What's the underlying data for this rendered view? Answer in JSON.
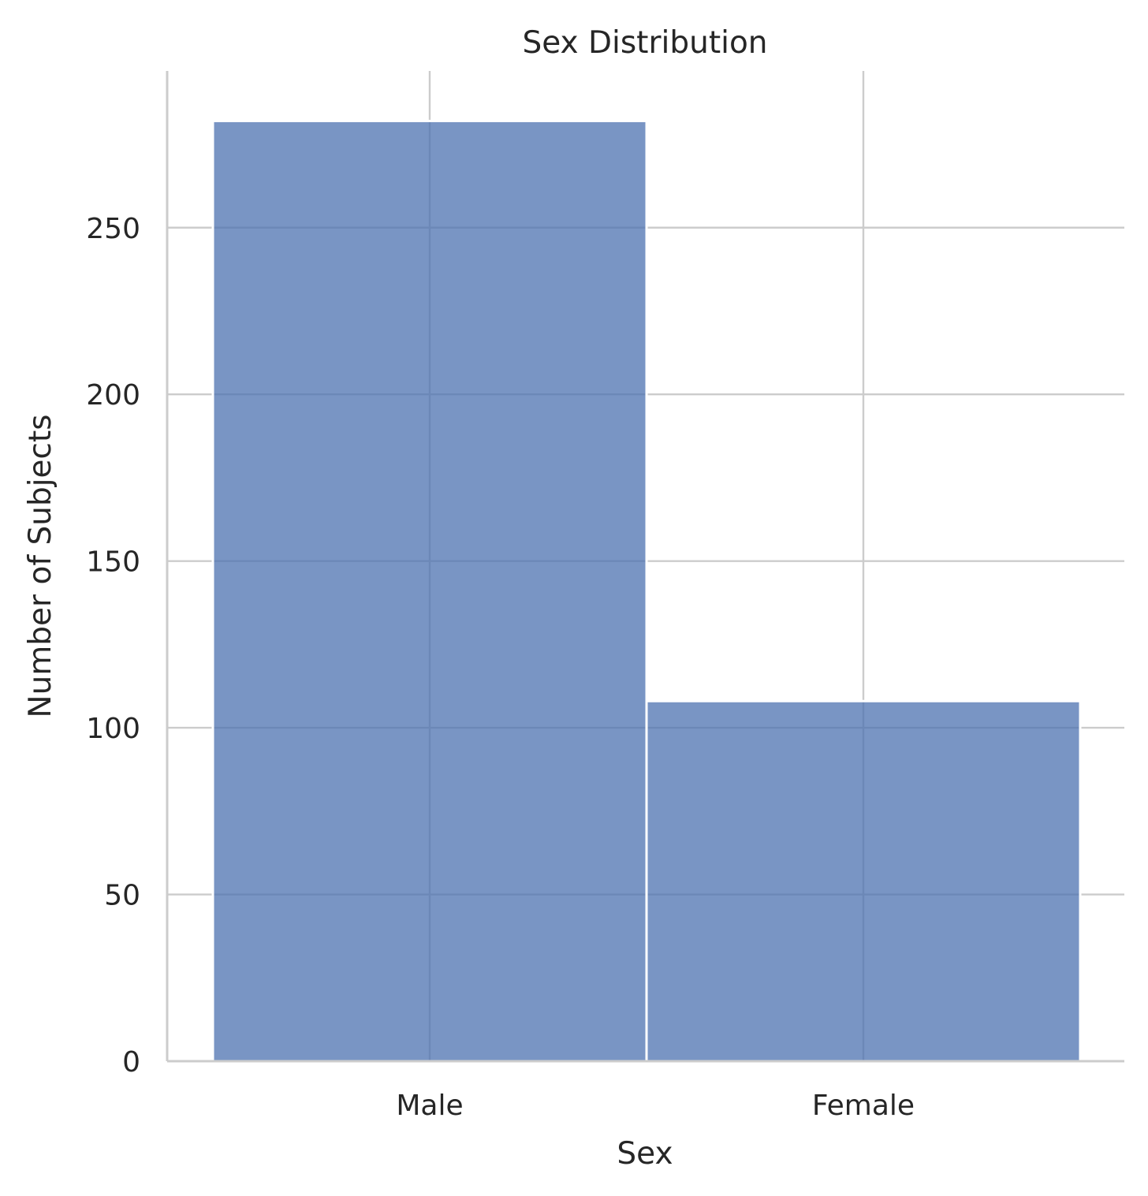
{
  "chart_data": {
    "type": "bar",
    "title": "Sex Distribution",
    "xlabel": "Sex",
    "ylabel": "Number of Subjects",
    "categories": [
      "Male",
      "Female"
    ],
    "values": [
      282,
      108
    ],
    "ylim": [
      0,
      297
    ],
    "yticks": [
      0,
      50,
      100,
      150,
      200,
      250
    ],
    "grid": true,
    "bar_color": "#4c72b0",
    "bar_opacity": 0.75
  }
}
